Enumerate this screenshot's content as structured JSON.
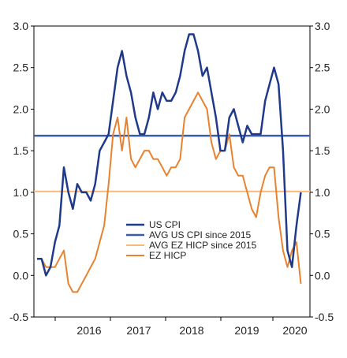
{
  "chart_data": {
    "type": "line",
    "ylim": [
      -0.5,
      3.0
    ],
    "yticks": [
      "3.0",
      "2.5",
      "2.0",
      "1.5",
      "1.0",
      "0.5",
      "0.0",
      "-0.5"
    ],
    "yticks_right": [
      "3.0",
      "2.5",
      "2.0",
      "1.5",
      "1.0",
      "0.5",
      "0.0",
      "-0.5"
    ],
    "xticks": [
      "2016",
      "2017",
      "2018",
      "2019",
      "2020"
    ],
    "x_start": "2015-06",
    "grid": false,
    "legend_position": "lower-center",
    "series": [
      {
        "name": "US CPI",
        "color": "#1f3a8a",
        "kind": "line",
        "values": [
          0.2,
          0.2,
          0.0,
          0.1,
          0.4,
          0.6,
          1.3,
          1.0,
          0.8,
          1.1,
          1.0,
          1.0,
          0.9,
          1.1,
          1.5,
          1.6,
          1.7,
          2.1,
          2.5,
          2.7,
          2.4,
          2.2,
          1.9,
          1.7,
          1.7,
          1.9,
          2.2,
          2.0,
          2.2,
          2.1,
          2.1,
          2.2,
          2.4,
          2.7,
          2.9,
          2.9,
          2.7,
          2.4,
          2.5,
          2.2,
          1.9,
          1.5,
          1.5,
          1.9,
          2.0,
          1.8,
          1.6,
          1.8,
          1.7,
          1.7,
          1.7,
          2.1,
          2.3,
          2.5,
          2.3,
          1.5,
          0.3,
          0.1,
          0.6,
          1.0
        ]
      },
      {
        "name": "AVG US CPI since 2015",
        "color": "#3a5da8",
        "kind": "hline",
        "value": 1.68
      },
      {
        "name": "AVG EZ HICP since 2015",
        "color": "#f7b87a",
        "kind": "hline",
        "value": 1.01
      },
      {
        "name": "EZ HICP",
        "color": "#e8822e",
        "kind": "line",
        "values": [
          0.2,
          0.2,
          0.1,
          0.1,
          0.1,
          0.2,
          0.3,
          -0.1,
          -0.2,
          -0.2,
          -0.1,
          0.0,
          0.1,
          0.2,
          0.4,
          0.6,
          1.1,
          1.7,
          1.9,
          1.5,
          1.9,
          1.4,
          1.3,
          1.4,
          1.5,
          1.5,
          1.4,
          1.4,
          1.3,
          1.2,
          1.3,
          1.3,
          1.4,
          1.9,
          2.0,
          2.1,
          2.2,
          2.1,
          2.0,
          1.6,
          1.4,
          1.5,
          1.5,
          1.7,
          1.3,
          1.2,
          1.2,
          1.0,
          0.8,
          0.7,
          1.0,
          1.2,
          1.3,
          1.3,
          0.7,
          0.3,
          0.1,
          0.3,
          0.4,
          -0.1
        ]
      }
    ]
  }
}
